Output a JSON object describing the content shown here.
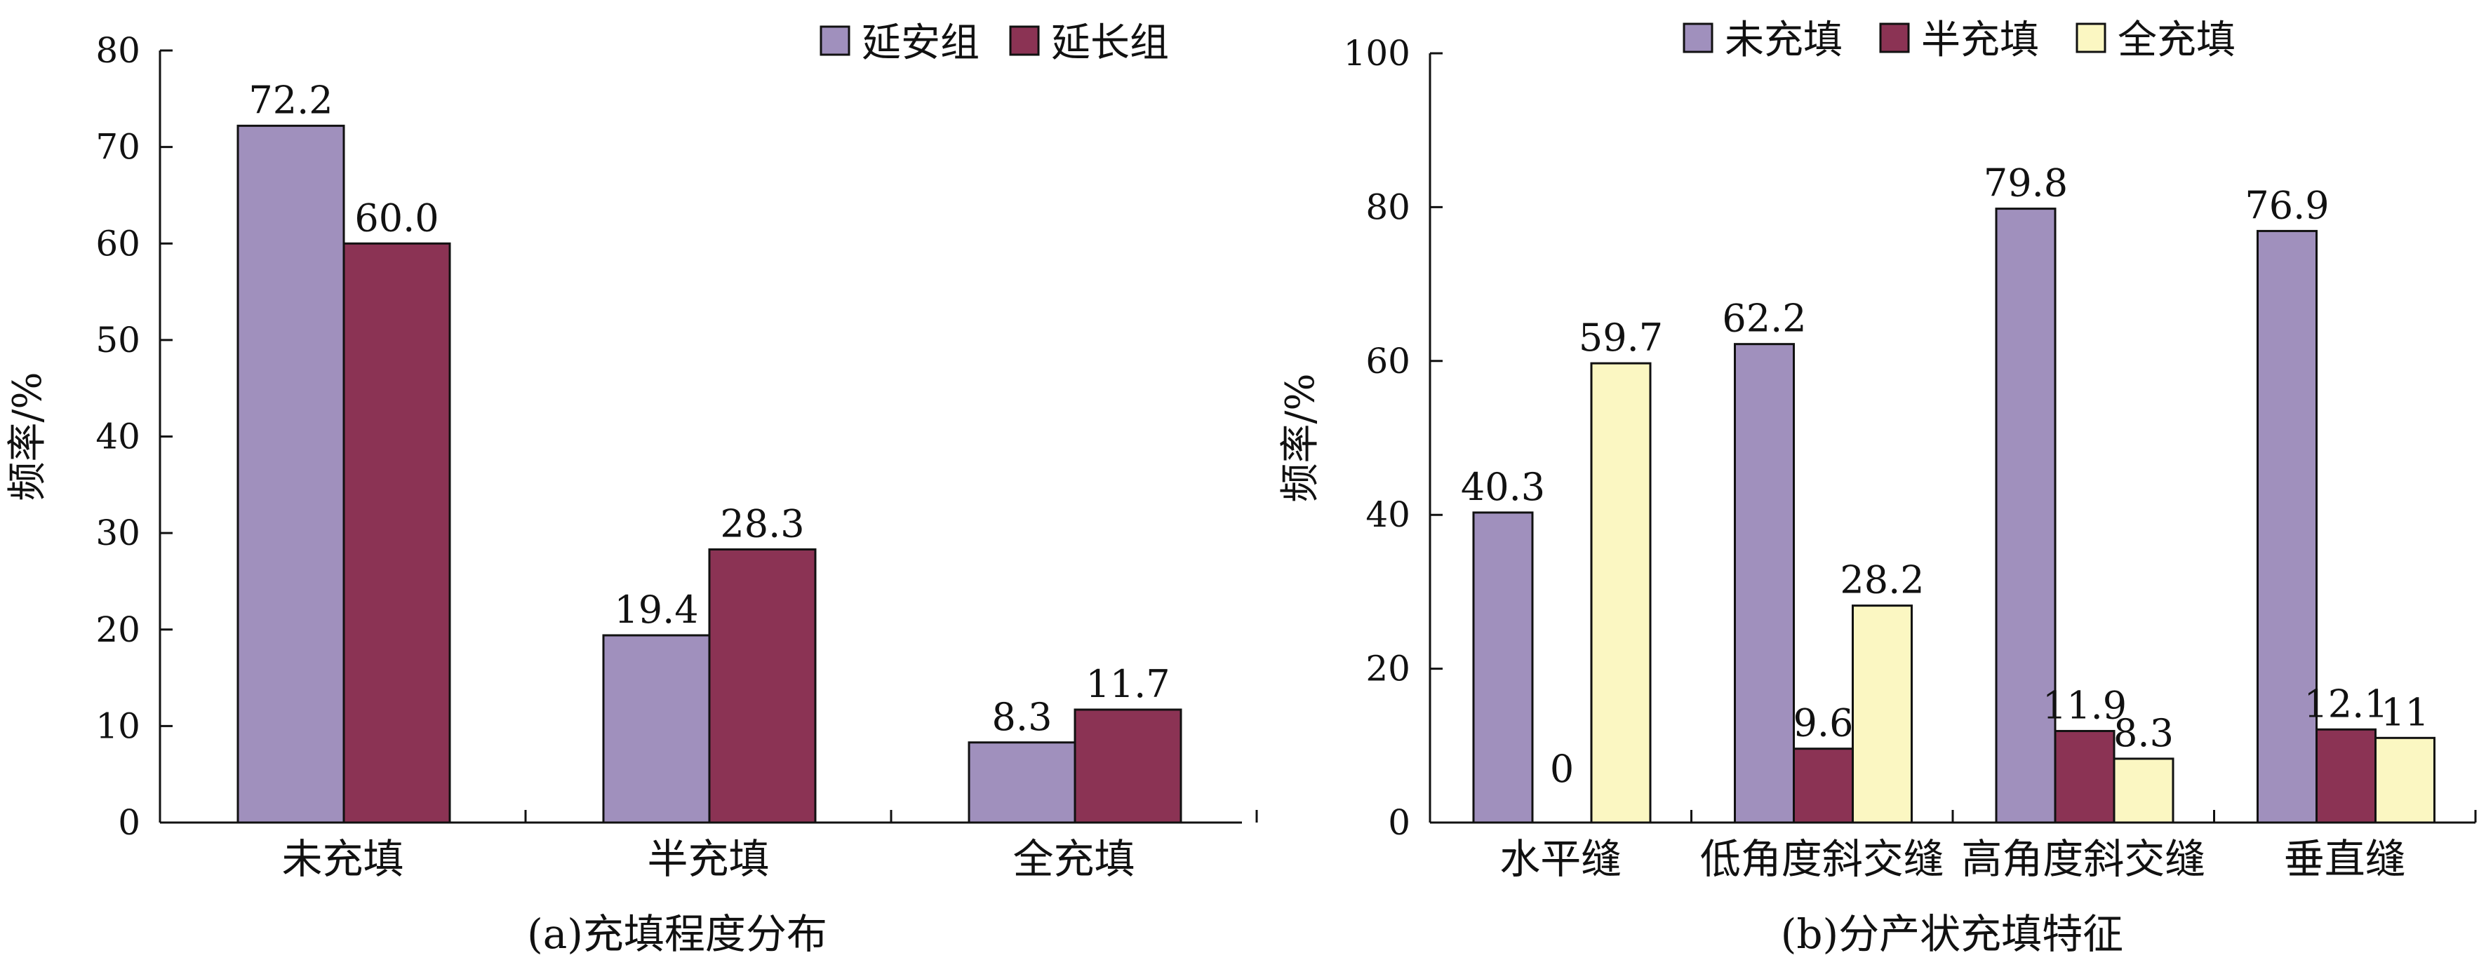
{
  "chart_data": [
    {
      "type": "bar",
      "panel": "a",
      "caption": "(a)充填程度分布",
      "ylabel": "频率/%",
      "xlabel": "",
      "ylim": [
        0,
        80
      ],
      "yticks": [
        0,
        10,
        20,
        30,
        40,
        50,
        60,
        70,
        80
      ],
      "grid": false,
      "legend_position": "top-right",
      "categories": [
        "未充填",
        "半充填",
        "全充填"
      ],
      "series": [
        {
          "name": "延安组",
          "color": "#a090bd",
          "values": [
            72.2,
            19.4,
            8.3
          ],
          "labels": [
            "72.2",
            "19.4",
            "8.3"
          ]
        },
        {
          "name": "延长组",
          "color": "#8b3354",
          "values": [
            60.0,
            28.3,
            11.7
          ],
          "labels": [
            "60.0",
            "28.3",
            "11.7"
          ]
        }
      ]
    },
    {
      "type": "bar",
      "panel": "b",
      "caption": "(b)分产状充填特征",
      "ylabel": "频率/%",
      "xlabel": "",
      "ylim": [
        0,
        100
      ],
      "yticks": [
        0,
        20,
        40,
        60,
        80,
        100
      ],
      "grid": false,
      "legend_position": "top",
      "categories": [
        "水平缝",
        "低角度斜交缝",
        "高角度斜交缝",
        "垂直缝"
      ],
      "series": [
        {
          "name": "未充填",
          "color": "#a090bd",
          "values": [
            40.3,
            62.2,
            79.8,
            76.9
          ],
          "labels": [
            "40.3",
            "62.2",
            "79.8",
            "76.9"
          ]
        },
        {
          "name": "半充填",
          "color": "#8b3354",
          "values": [
            0,
            9.6,
            11.9,
            12.1
          ],
          "labels": [
            "0",
            "9.6",
            "11.9",
            "12.1"
          ]
        },
        {
          "name": "全充填",
          "color": "#fbf7c2",
          "values": [
            59.7,
            28.2,
            8.3,
            11
          ],
          "labels": [
            "59.7",
            "28.2",
            "8.3",
            "11"
          ]
        }
      ]
    }
  ]
}
